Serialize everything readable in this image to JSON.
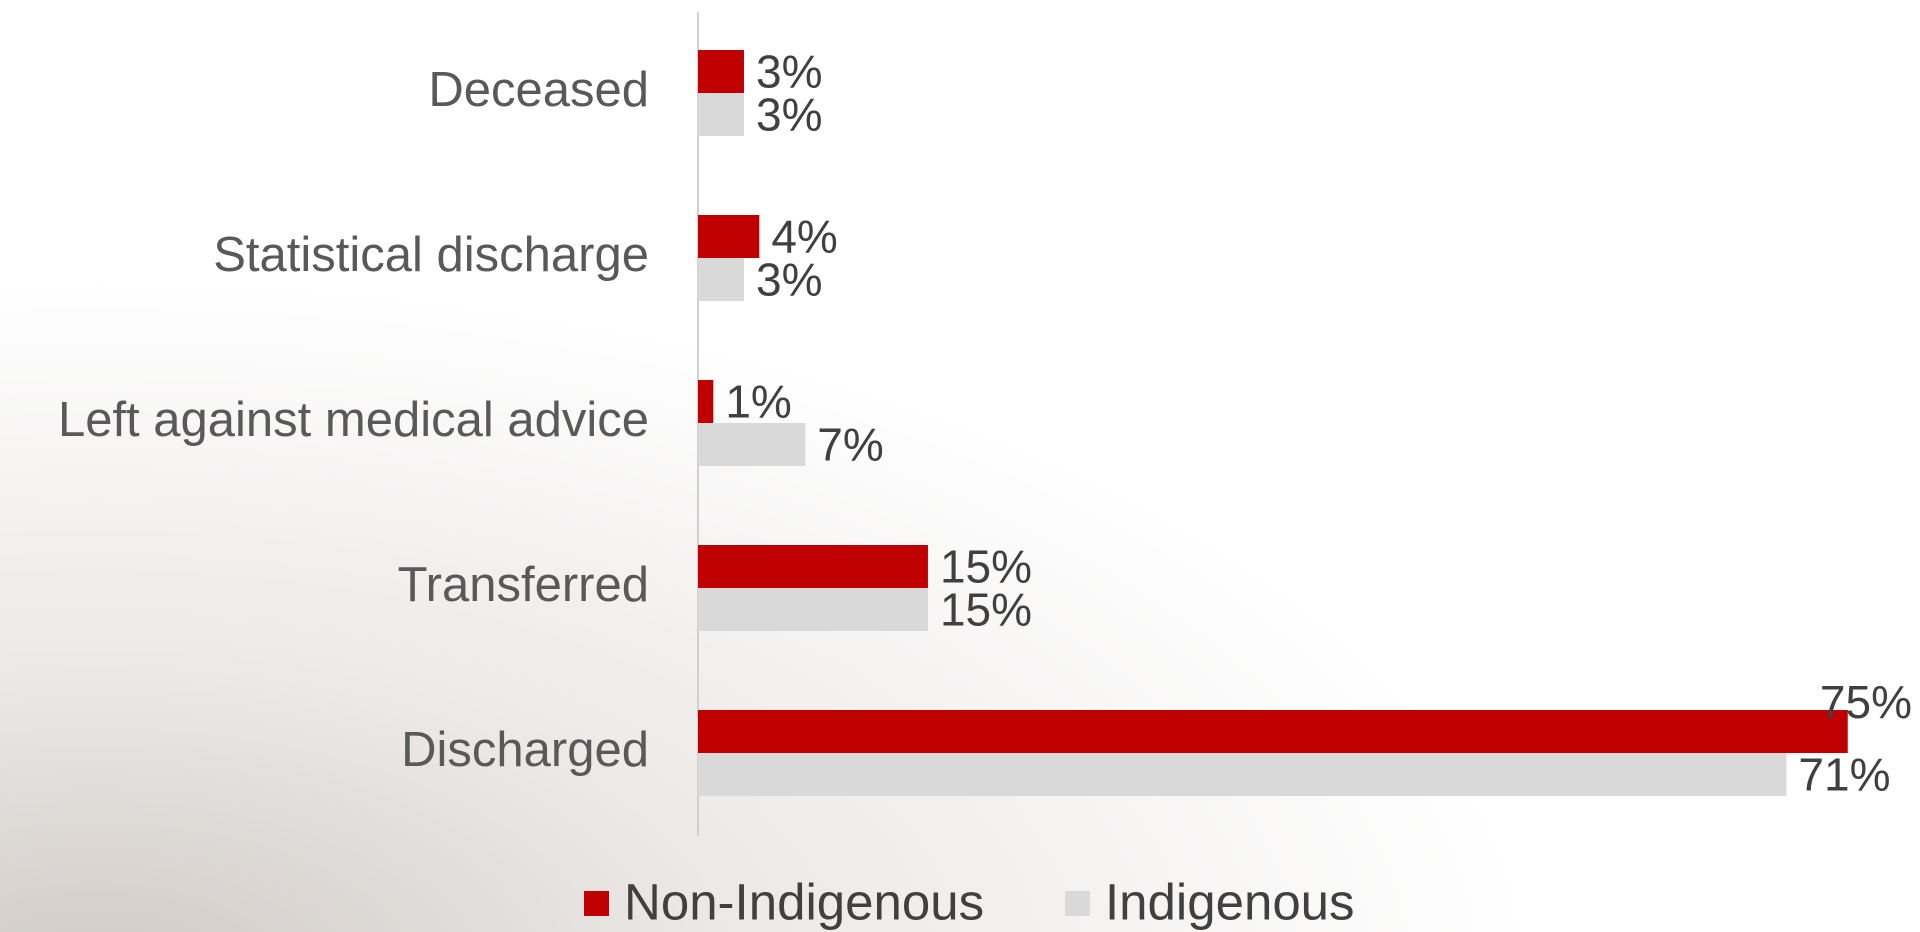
{
  "chart_data": {
    "type": "hbar",
    "categories": [
      "Deceased",
      "Statistical discharge",
      "Left against medical advice",
      "Transferred",
      "Discharged"
    ],
    "series": [
      {
        "name": "Non-Indigenous",
        "color": "#c00000",
        "values": [
          3,
          4,
          1,
          15,
          75
        ],
        "value_labels": [
          "3%",
          "4%",
          "1%",
          "15%",
          "75%"
        ]
      },
      {
        "name": "Indigenous",
        "color": "#d9d9d9",
        "values": [
          3,
          3,
          7,
          15,
          71
        ],
        "value_labels": [
          "3%",
          "3%",
          "7%",
          "15%",
          "71%"
        ]
      }
    ],
    "legend": "bottom"
  }
}
